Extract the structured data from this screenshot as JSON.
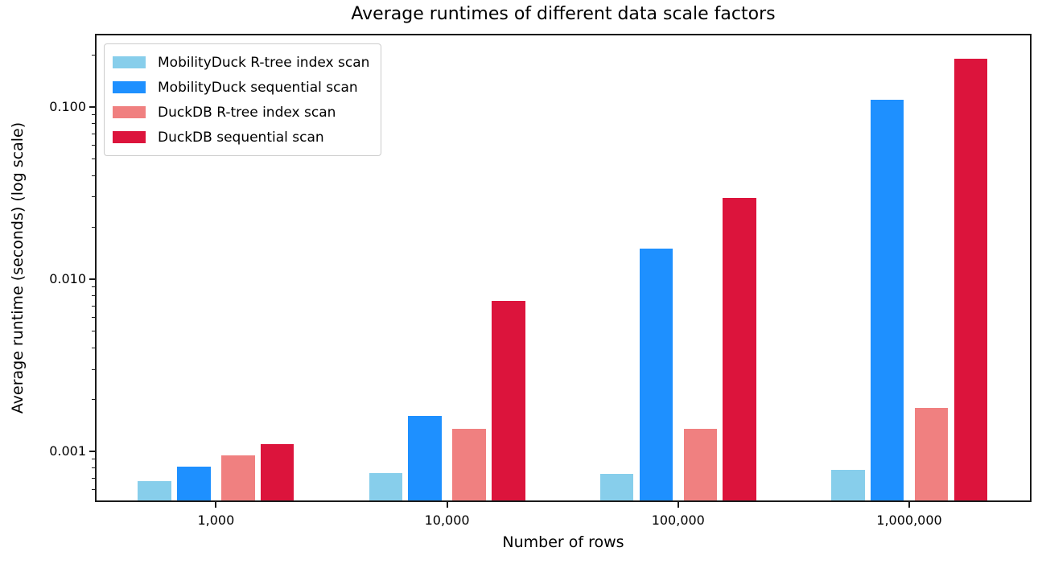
{
  "chart_data": {
    "type": "bar",
    "title": "Average runtimes of different data scale factors",
    "xlabel": "Number of rows",
    "ylabel": "Average runtime (seconds) (log scale)",
    "yscale": "log",
    "grid": false,
    "legend_position": "upper left",
    "categories": [
      "1,000",
      "10,000",
      "100,000",
      "1,000,000"
    ],
    "series": [
      {
        "name": "MobilityDuck R-tree index scan",
        "color": "#87CEEB",
        "values": [
          0.00067,
          0.00075,
          0.00074,
          0.00078
        ]
      },
      {
        "name": "MobilityDuck sequential scan",
        "color": "#1E90FF",
        "values": [
          0.00082,
          0.0016,
          0.015,
          0.11
        ]
      },
      {
        "name": "DuckDB R-tree index scan",
        "color": "#F08080",
        "values": [
          0.00095,
          0.00135,
          0.00136,
          0.0018
        ]
      },
      {
        "name": "DuckDB sequential scan",
        "color": "#DC143C",
        "values": [
          0.0011,
          0.0075,
          0.0295,
          0.19
        ]
      }
    ],
    "ylim": [
      0.00052,
      0.26
    ],
    "yticks": [
      {
        "value": 0.001,
        "label": "0.001"
      },
      {
        "value": 0.01,
        "label": "0.010"
      },
      {
        "value": 0.1,
        "label": "0.100"
      }
    ]
  }
}
